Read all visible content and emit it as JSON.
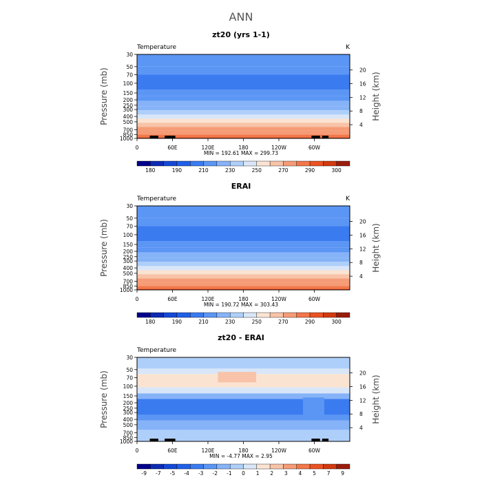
{
  "page_title": "ANN",
  "chart_data": [
    {
      "type": "heatmap",
      "title": "zt20 (yrs 1-1)",
      "left_label": "Temperature",
      "right_label": "K",
      "ylabel": "Pressure (mb)",
      "y2label": "Height (km)",
      "xticks": [
        "0",
        "60E",
        "120E",
        "180",
        "120W",
        "60W"
      ],
      "yticks": [
        "30",
        "50",
        "70",
        "100",
        "150",
        "200",
        "250",
        "300",
        "400",
        "500",
        "700",
        "850",
        "1000"
      ],
      "y2ticks": [
        "20",
        "16",
        "12",
        "8",
        "4"
      ],
      "stats": "MIN = 192.61   MAX = 299.73",
      "colorbar_labels": [
        "180",
        "190",
        "210",
        "230",
        "250",
        "270",
        "290",
        "300"
      ],
      "bands": [
        {
          "pressure": [
            30,
            50
          ],
          "value": 215
        },
        {
          "pressure": [
            50,
            70
          ],
          "value": 210
        },
        {
          "pressure": [
            70,
            130
          ],
          "value": 205
        },
        {
          "pressure": [
            130,
            170
          ],
          "value": 210
        },
        {
          "pressure": [
            170,
            210
          ],
          "value": 215
        },
        {
          "pressure": [
            210,
            260
          ],
          "value": 220
        },
        {
          "pressure": [
            260,
            310
          ],
          "value": 228
        },
        {
          "pressure": [
            310,
            370
          ],
          "value": 236
        },
        {
          "pressure": [
            370,
            440
          ],
          "value": 245
        },
        {
          "pressure": [
            440,
            520
          ],
          "value": 255
        },
        {
          "pressure": [
            520,
            620
          ],
          "value": 262
        },
        {
          "pressure": [
            620,
            720
          ],
          "value": 270
        },
        {
          "pressure": [
            720,
            850
          ],
          "value": 278
        },
        {
          "pressure": [
            850,
            950
          ],
          "value": 285
        },
        {
          "pressure": [
            950,
            1000
          ],
          "value": 292
        }
      ]
    },
    {
      "type": "heatmap",
      "title": "ERAI",
      "left_label": "Temperature",
      "right_label": "K",
      "ylabel": "Pressure (mb)",
      "y2label": "Height (km)",
      "xticks": [
        "0",
        "60E",
        "120E",
        "180",
        "120W",
        "60W"
      ],
      "yticks": [
        "30",
        "50",
        "70",
        "100",
        "150",
        "200",
        "250",
        "300",
        "400",
        "500",
        "700",
        "850",
        "1000"
      ],
      "y2ticks": [
        "20",
        "16",
        "12",
        "8",
        "4"
      ],
      "stats": "MIN = 190.72   MAX = 303.43",
      "colorbar_labels": [
        "180",
        "190",
        "210",
        "230",
        "250",
        "270",
        "290",
        "300"
      ],
      "bands": [
        {
          "pressure": [
            30,
            50
          ],
          "value": 215
        },
        {
          "pressure": [
            50,
            70
          ],
          "value": 210
        },
        {
          "pressure": [
            70,
            130
          ],
          "value": 205
        },
        {
          "pressure": [
            130,
            170
          ],
          "value": 210
        },
        {
          "pressure": [
            170,
            210
          ],
          "value": 215
        },
        {
          "pressure": [
            210,
            260
          ],
          "value": 220
        },
        {
          "pressure": [
            260,
            310
          ],
          "value": 228
        },
        {
          "pressure": [
            310,
            370
          ],
          "value": 236
        },
        {
          "pressure": [
            370,
            440
          ],
          "value": 245
        },
        {
          "pressure": [
            440,
            520
          ],
          "value": 255
        },
        {
          "pressure": [
            520,
            620
          ],
          "value": 262
        },
        {
          "pressure": [
            620,
            720
          ],
          "value": 270
        },
        {
          "pressure": [
            720,
            850
          ],
          "value": 278
        },
        {
          "pressure": [
            850,
            950
          ],
          "value": 285
        },
        {
          "pressure": [
            950,
            1000
          ],
          "value": 292
        }
      ]
    },
    {
      "type": "heatmap",
      "title": "zt20 - ERAI",
      "left_label": "Temperature",
      "right_label": "",
      "ylabel": "Pressure (mb)",
      "y2label": "Height (km)",
      "xticks": [
        "0",
        "60E",
        "120E",
        "180",
        "120W",
        "60W"
      ],
      "yticks": [
        "30",
        "50",
        "70",
        "100",
        "150",
        "200",
        "250",
        "300",
        "400",
        "500",
        "700",
        "850",
        "1000"
      ],
      "y2ticks": [
        "20",
        "16",
        "12",
        "8",
        "4"
      ],
      "stats": "MIN =  -4.77   MAX =   2.95",
      "colorbar_labels": [
        "-9",
        "-7",
        "-5",
        "-4",
        "-3",
        "-2",
        "-1",
        "0",
        "1",
        "2",
        "3",
        "4",
        "5",
        "7",
        "9"
      ],
      "bands": [
        {
          "pressure": [
            30,
            48
          ],
          "value": -0.5
        },
        {
          "pressure": [
            48,
            60
          ],
          "value": 0.5
        },
        {
          "pressure": [
            60,
            105
          ],
          "value": 1.5
        },
        {
          "pressure": [
            105,
            135
          ],
          "value": 0.5
        },
        {
          "pressure": [
            135,
            170
          ],
          "value": -1.5
        },
        {
          "pressure": [
            170,
            330
          ],
          "value": -3.5
        },
        {
          "pressure": [
            330,
            420
          ],
          "value": -2.5
        },
        {
          "pressure": [
            420,
            620
          ],
          "value": -1.5
        },
        {
          "pressure": [
            620,
            1000
          ],
          "value": -0.5
        }
      ]
    }
  ],
  "colors": {
    "temp_levels": [
      "#00008b",
      "#0d2bb3",
      "#1548d6",
      "#2060e8",
      "#3b7bf0",
      "#5b96f5",
      "#86b3f8",
      "#aecff9",
      "#d9e6f8",
      "#fbe3d2",
      "#f8c3a8",
      "#f59c77",
      "#f2774a",
      "#eb5222",
      "#d23a0f",
      "#9b1c0c"
    ],
    "diff_levels": [
      "#00008b",
      "#0d2bb3",
      "#1548d6",
      "#2060e8",
      "#3b7bf0",
      "#5b96f5",
      "#86b3f8",
      "#aecff9",
      "#d9e6f8",
      "#fbe3d2",
      "#f8c3a8",
      "#f59c77",
      "#f2774a",
      "#eb5222",
      "#d23a0f",
      "#9b1c0c"
    ]
  }
}
